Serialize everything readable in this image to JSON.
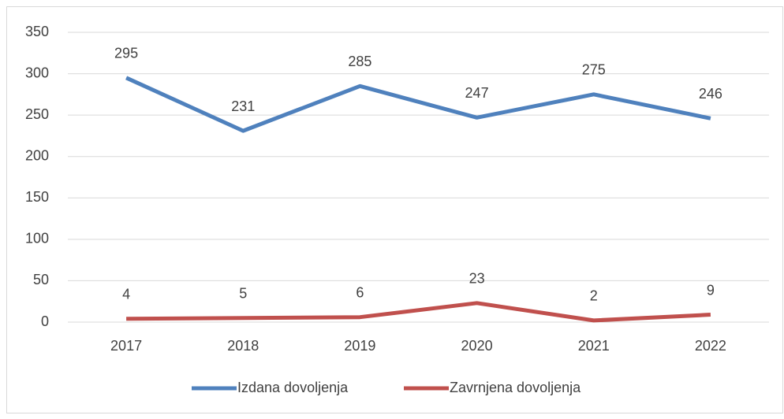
{
  "chart_data": {
    "type": "line",
    "categories": [
      "2017",
      "2018",
      "2019",
      "2020",
      "2021",
      "2022"
    ],
    "series": [
      {
        "name": "Izdana dovoljenja",
        "color": "#4f81bd",
        "values": [
          295,
          231,
          285,
          247,
          275,
          246
        ]
      },
      {
        "name": "Zavrnjena dovoljenja",
        "color": "#c0504d",
        "values": [
          4,
          5,
          6,
          23,
          2,
          9
        ]
      }
    ],
    "ylim": [
      0,
      350
    ],
    "yticks": [
      0,
      50,
      100,
      150,
      200,
      250,
      300,
      350
    ],
    "grid": true,
    "legend": "bottom"
  }
}
